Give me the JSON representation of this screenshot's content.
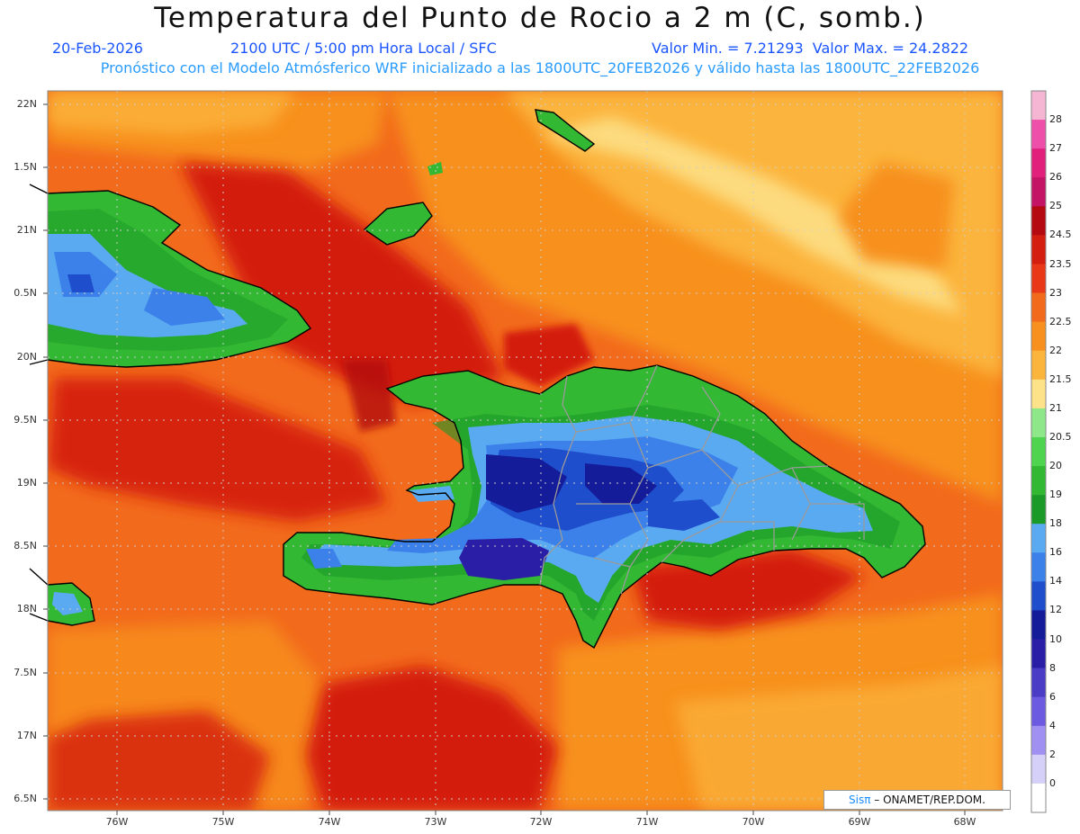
{
  "header": {
    "title": "Temperatura del Punto de Rocio a 2 m (C, somb.)",
    "date": "20-Feb-2026",
    "time": "2100 UTC / 5:00 pm Hora Local / SFC",
    "minmax": "Valor Min. = 7.21293  Valor Max. = 24.2822",
    "forecast": "Pronóstico con el Modelo Atmósferico WRF inicializado a las 1800UTC_20FEB2026 y válido hasta las  1800UTC_22FEB2026"
  },
  "axes": {
    "lat_labels": [
      "22N",
      "1.5N",
      "21N",
      "0.5N",
      "20N",
      "9.5N",
      "19N",
      "8.5N",
      "18N",
      "7.5N",
      "17N",
      "6.5N"
    ],
    "lon_labels": [
      "76W",
      "75W",
      "74W",
      "73W",
      "72W",
      "71W",
      "70W",
      "69W",
      "68W"
    ]
  },
  "colorbar": {
    "labels": [
      "28",
      "27",
      "26",
      "25",
      "24.5",
      "23.5",
      "23",
      "22.5",
      "22",
      "21.5",
      "21",
      "20.5",
      "20",
      "19",
      "18",
      "16",
      "14",
      "12",
      "10",
      "8",
      "6",
      "4",
      "2",
      "0"
    ],
    "colors": [
      "#f4b6d2",
      "#ee4fa8",
      "#e0207a",
      "#c41466",
      "#b40a10",
      "#d41e10",
      "#e83818",
      "#f26a1c",
      "#f7901e",
      "#fbb43c",
      "#fde28a",
      "#8ee88a",
      "#4ed44e",
      "#32b832",
      "#1b9a28",
      "#5aaaf2",
      "#3c80ea",
      "#1e4ecc",
      "#141c9a",
      "#2a1ea6",
      "#4a3cc4",
      "#6c5ae0",
      "#a090f2",
      "#d4d0f8",
      "#ffffff"
    ]
  },
  "credit": {
    "sis": "Sisπ",
    "text": " – ONAMET/REP.DOM."
  }
}
